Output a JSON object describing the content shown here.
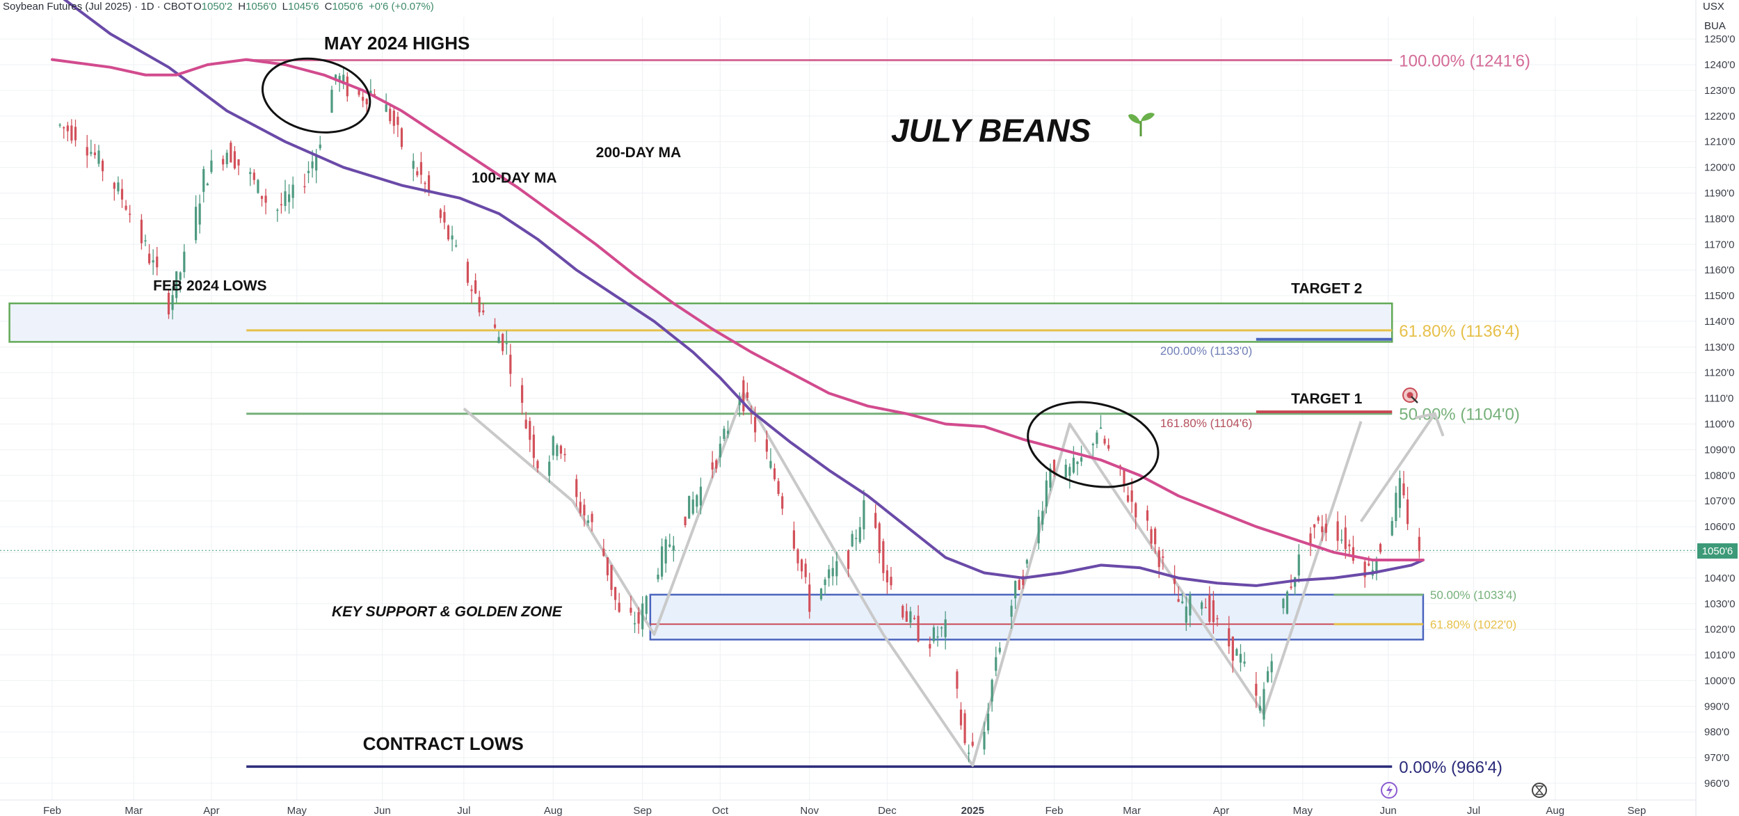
{
  "header": {
    "symbol": "Soybean Futures (Jul 2025) · 1D · CBOT",
    "open_label": "O",
    "open": "1050'2",
    "high_label": "H",
    "high": "1056'0",
    "low_label": "L",
    "low": "1045'6",
    "close_label": "C",
    "close": "1050'6",
    "change": "+0'6 (+0.07%)",
    "currency": "USX",
    "unit": "BUA",
    "last_price_tag": "1050'6"
  },
  "chart_data": {
    "type": "candlestick",
    "title": "JULY BEANS",
    "y_range": [
      955,
      1253
    ],
    "y_ticks": [
      "960'0",
      "970'0",
      "980'0",
      "990'0",
      "1000'0",
      "1010'0",
      "1020'0",
      "1030'0",
      "1040'0",
      "1050'0",
      "1060'0",
      "1070'0",
      "1080'0",
      "1090'0",
      "1100'0",
      "1110'0",
      "1120'0",
      "1130'0",
      "1140'0",
      "1150'0",
      "1160'0",
      "1170'0",
      "1180'0",
      "1190'0",
      "1200'0",
      "1210'0",
      "1220'0",
      "1230'0",
      "1240'0",
      "1250'0"
    ],
    "x_labels": [
      "Feb",
      "Mar",
      "Apr",
      "May",
      "Jun",
      "Jul",
      "Aug",
      "Sep",
      "Oct",
      "Nov",
      "Dec",
      "2025",
      "Feb",
      "Mar",
      "Apr",
      "May",
      "Jun",
      "Jul",
      "Aug",
      "Sep"
    ],
    "x_label_day_index": [
      0,
      21,
      41,
      63,
      85,
      106,
      129,
      152,
      172,
      195,
      215,
      237,
      258,
      278,
      301,
      322,
      344,
      366,
      387,
      408
    ],
    "x_axis_start": "2024-01-26",
    "day_span": [
      0,
      420
    ],
    "price_path_key_points": [
      [
        0,
        1218
      ],
      [
        8,
        1213
      ],
      [
        14,
        1200
      ],
      [
        20,
        1186
      ],
      [
        26,
        1165
      ],
      [
        31,
        1147
      ],
      [
        36,
        1168
      ],
      [
        40,
        1196
      ],
      [
        46,
        1207
      ],
      [
        52,
        1196
      ],
      [
        58,
        1183
      ],
      [
        64,
        1190
      ],
      [
        69,
        1206
      ],
      [
        74,
        1236
      ],
      [
        79,
        1227
      ],
      [
        84,
        1230
      ],
      [
        88,
        1220
      ],
      [
        92,
        1205
      ],
      [
        96,
        1196
      ],
      [
        100,
        1183
      ],
      [
        106,
        1163
      ],
      [
        113,
        1140
      ],
      [
        118,
        1130
      ],
      [
        123,
        1100
      ],
      [
        127,
        1080
      ],
      [
        131,
        1095
      ],
      [
        136,
        1070
      ],
      [
        142,
        1055
      ],
      [
        147,
        1025
      ],
      [
        152,
        1023
      ],
      [
        157,
        1045
      ],
      [
        162,
        1060
      ],
      [
        168,
        1075
      ],
      [
        173,
        1090
      ],
      [
        178,
        1113
      ],
      [
        183,
        1095
      ],
      [
        188,
        1075
      ],
      [
        192,
        1055
      ],
      [
        196,
        1030
      ],
      [
        201,
        1040
      ],
      [
        206,
        1048
      ],
      [
        211,
        1072
      ],
      [
        216,
        1040
      ],
      [
        221,
        1025
      ],
      [
        226,
        1015
      ],
      [
        231,
        1020
      ],
      [
        236,
        975
      ],
      [
        240,
        970
      ],
      [
        244,
        1010
      ],
      [
        249,
        1035
      ],
      [
        253,
        1048
      ],
      [
        258,
        1085
      ],
      [
        262,
        1080
      ],
      [
        266,
        1085
      ],
      [
        270,
        1098
      ],
      [
        274,
        1086
      ],
      [
        278,
        1072
      ],
      [
        282,
        1063
      ],
      [
        287,
        1045
      ],
      [
        292,
        1027
      ],
      [
        297,
        1033
      ],
      [
        302,
        1018
      ],
      [
        307,
        1008
      ],
      [
        312,
        988
      ],
      [
        316,
        1020
      ],
      [
        321,
        1043
      ],
      [
        326,
        1060
      ],
      [
        331,
        1060
      ],
      [
        336,
        1050
      ],
      [
        340,
        1043
      ],
      [
        344,
        1055
      ],
      [
        348,
        1075
      ],
      [
        352,
        1052
      ]
    ],
    "moving_averages": [
      {
        "name": "100-DAY MA",
        "color": "#6a4aa8",
        "points": [
          [
            0,
            1269
          ],
          [
            15,
            1252
          ],
          [
            30,
            1239
          ],
          [
            45,
            1222
          ],
          [
            60,
            1210
          ],
          [
            75,
            1200
          ],
          [
            90,
            1193
          ],
          [
            105,
            1188
          ],
          [
            115,
            1182
          ],
          [
            125,
            1172
          ],
          [
            135,
            1160
          ],
          [
            145,
            1150
          ],
          [
            155,
            1140
          ],
          [
            165,
            1128
          ],
          [
            172,
            1118
          ],
          [
            180,
            1105
          ],
          [
            190,
            1093
          ],
          [
            200,
            1082
          ],
          [
            210,
            1072
          ],
          [
            220,
            1060
          ],
          [
            230,
            1048
          ],
          [
            240,
            1042
          ],
          [
            250,
            1040
          ],
          [
            260,
            1042
          ],
          [
            270,
            1045
          ],
          [
            280,
            1044
          ],
          [
            290,
            1040
          ],
          [
            300,
            1038
          ],
          [
            310,
            1037
          ],
          [
            320,
            1039
          ],
          [
            330,
            1040
          ],
          [
            340,
            1042
          ],
          [
            350,
            1045
          ],
          [
            353,
            1047
          ]
        ]
      },
      {
        "name": "200-DAY MA",
        "color": "#d24b8e",
        "points": [
          [
            0,
            1242
          ],
          [
            15,
            1239
          ],
          [
            24,
            1236
          ],
          [
            32,
            1236
          ],
          [
            40,
            1240
          ],
          [
            50,
            1242
          ],
          [
            60,
            1240
          ],
          [
            70,
            1236
          ],
          [
            80,
            1230
          ],
          [
            90,
            1222
          ],
          [
            100,
            1212
          ],
          [
            110,
            1202
          ],
          [
            120,
            1192
          ],
          [
            130,
            1181
          ],
          [
            140,
            1170
          ],
          [
            150,
            1158
          ],
          [
            160,
            1147
          ],
          [
            170,
            1137
          ],
          [
            180,
            1128
          ],
          [
            190,
            1120
          ],
          [
            200,
            1112
          ],
          [
            210,
            1107
          ],
          [
            220,
            1104
          ],
          [
            230,
            1100
          ],
          [
            240,
            1099
          ],
          [
            250,
            1094
          ],
          [
            260,
            1090
          ],
          [
            270,
            1086
          ],
          [
            280,
            1080
          ],
          [
            290,
            1072
          ],
          [
            300,
            1066
          ],
          [
            310,
            1060
          ],
          [
            320,
            1055
          ],
          [
            330,
            1050
          ],
          [
            340,
            1047
          ],
          [
            353,
            1047
          ]
        ]
      }
    ],
    "swing_lines": {
      "color": "#c9c9c9",
      "points": [
        [
          106,
          1106
        ],
        [
          134,
          1070
        ],
        [
          155,
          1018
        ],
        [
          178,
          1112
        ],
        [
          214,
          1018
        ],
        [
          237,
          967
        ],
        [
          262,
          1100
        ],
        [
          312,
          987
        ],
        [
          337,
          1101
        ]
      ],
      "arrow_from": [
        337,
        1062
      ],
      "arrow_to": [
        356,
        1104
      ]
    },
    "zones": [
      {
        "name": "FEB 2024 LOWS zone",
        "price_top": 1147,
        "price_bottom": 1132,
        "day_start": -11,
        "day_end": 345,
        "color": "#62a957",
        "fill": "#eef3fb"
      },
      {
        "name": "KEY SUPPORT & GOLDEN ZONE",
        "price_top": 1033.5,
        "price_bottom": 1016,
        "day_start": 154,
        "day_end": 353,
        "color": "#4a64bd",
        "fill": "#e8f0fc"
      }
    ],
    "levels": [
      {
        "label": "100.00% (1241'6)",
        "price": 1241.75,
        "day_start": 50,
        "day_end": 345,
        "color": "#d46b97"
      },
      {
        "label": "61.80% (1136'4)",
        "price": 1136.5,
        "day_start": 50,
        "day_end": 345,
        "color": "#e6c04a"
      },
      {
        "label": "50.00% (1104'0)",
        "price": 1104,
        "day_start": 50,
        "day_end": 345,
        "color": "#76b07a"
      },
      {
        "label": "0.00% (966'4)",
        "price": 966.5,
        "day_start": 50,
        "day_end": 345,
        "color": "#2a2a7a"
      },
      {
        "label": "50.00% (1033'4)",
        "price": 1033.5,
        "day_start": 330,
        "day_end": 353,
        "color": "#76b07a"
      },
      {
        "label": "61.80% (1022'0)",
        "price": 1022,
        "day_start": 330,
        "day_end": 353,
        "color": "#e6c04a"
      }
    ],
    "extension_levels": [
      {
        "label": "200.00% (1133'0)",
        "price": 1133,
        "day_start": 310,
        "day_end": 345,
        "color": "#4a64bd",
        "text_color": "#6f7fb6"
      },
      {
        "label": "161.80% (1104'6)",
        "price": 1104.75,
        "day_start": 310,
        "day_end": 345,
        "color": "#c84a55",
        "text_color": "#b4505c"
      }
    ],
    "annotations": [
      {
        "text": "MAY 2024 HIGHS",
        "x_day": 70,
        "y_price": 1246,
        "size": 26,
        "color": "#111",
        "italic": false
      },
      {
        "text": "JULY BEANS",
        "x_day": 216,
        "y_price": 1210,
        "size": 46,
        "color": "#111",
        "italic": true
      },
      {
        "text": "200-DAY MA",
        "x_day": 140,
        "y_price": 1204,
        "size": 21,
        "color": "#d24b8e",
        "italic": false
      },
      {
        "text": "100-DAY MA",
        "x_day": 108,
        "y_price": 1194,
        "size": 21,
        "color": "#6a4aa8",
        "italic": false
      },
      {
        "text": "FEB 2024 LOWS",
        "x_day": 26,
        "y_price": 1152,
        "size": 21,
        "color": "#111",
        "italic": false
      },
      {
        "text": "TARGET 2",
        "x_day": 319,
        "y_price": 1151,
        "size": 21,
        "color": "#111",
        "italic": false
      },
      {
        "text": "TARGET 1",
        "x_day": 319,
        "y_price": 1108,
        "size": 21,
        "color": "#111",
        "italic": false
      },
      {
        "text": "KEY SUPPORT & GOLDEN ZONE",
        "x_day": 72,
        "y_price": 1025,
        "size": 21,
        "color": "#111",
        "italic": true
      },
      {
        "text": "CONTRACT LOWS",
        "x_day": 80,
        "y_price": 973,
        "size": 26,
        "color": "#111",
        "italic": false
      }
    ],
    "ellipses": [
      {
        "name": "may-highs-ellipse",
        "center_day": 68,
        "center_price": 1228,
        "rx_days": 14,
        "ry_price": 14
      },
      {
        "name": "feb-highs-ellipse",
        "center_day": 268,
        "center_price": 1092,
        "rx_days": 17,
        "ry_price": 16
      }
    ],
    "colors": {
      "up": "#4e9a80",
      "down": "#d2505a"
    }
  }
}
